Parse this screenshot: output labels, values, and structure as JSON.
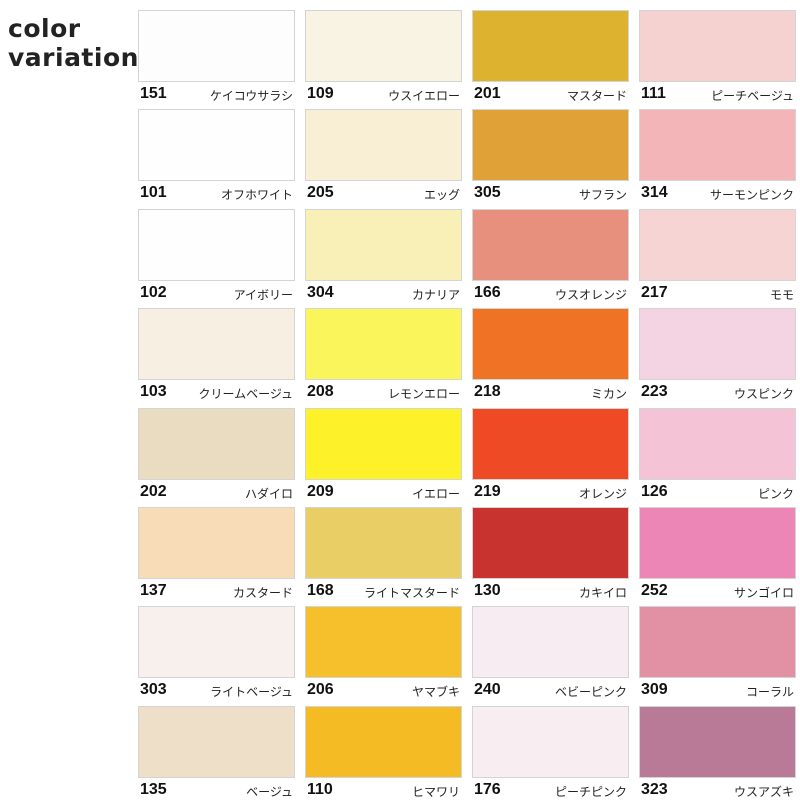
{
  "title": [
    "color",
    "variation"
  ],
  "rows": [
    [
      {
        "code": "151",
        "name": "ケイコウサラシ",
        "color": "#fdfdfd"
      },
      {
        "code": "109",
        "name": "ウスイエロー",
        "color": "#f8f3e3"
      },
      {
        "code": "201",
        "name": "マスタード",
        "color": "#dcb22e"
      },
      {
        "code": "111",
        "name": "ピーチベージュ",
        "color": "#f5d2cf"
      }
    ],
    [
      {
        "code": "101",
        "name": "オフホワイト",
        "color": "#fefefe"
      },
      {
        "code": "205",
        "name": "エッグ",
        "color": "#f8efd5"
      },
      {
        "code": "305",
        "name": "サフラン",
        "color": "#e0a136"
      },
      {
        "code": "314",
        "name": "サーモンピンク",
        "color": "#f3b5b8"
      }
    ],
    [
      {
        "code": "102",
        "name": "アイボリー",
        "color": "#fefefe"
      },
      {
        "code": "304",
        "name": "カナリア",
        "color": "#f9f0b8"
      },
      {
        "code": "166",
        "name": "ウスオレンジ",
        "color": "#e8907e"
      },
      {
        "code": "217",
        "name": "モモ",
        "color": "#f6d4d3"
      }
    ],
    [
      {
        "code": "103",
        "name": "クリームベージュ",
        "color": "#f8efe3"
      },
      {
        "code": "208",
        "name": "レモンエロー",
        "color": "#fbf55c"
      },
      {
        "code": "218",
        "name": "ミカン",
        "color": "#f07225"
      },
      {
        "code": "223",
        "name": "ウスピンク",
        "color": "#f4d4e3"
      }
    ],
    [
      {
        "code": "202",
        "name": "ハダイロ",
        "color": "#eadcc0"
      },
      {
        "code": "209",
        "name": "イエロー",
        "color": "#fdf22a"
      },
      {
        "code": "219",
        "name": "オレンジ",
        "color": "#ef4a26"
      },
      {
        "code": "126",
        "name": "ピンク",
        "color": "#f4c3d6"
      }
    ],
    [
      {
        "code": "137",
        "name": "カスタード",
        "color": "#f7dcb7"
      },
      {
        "code": "168",
        "name": "ライトマスタード",
        "color": "#e8ce65"
      },
      {
        "code": "130",
        "name": "カキイロ",
        "color": "#c8332f"
      },
      {
        "code": "252",
        "name": "サンゴイロ",
        "color": "#ec86b6"
      }
    ],
    [
      {
        "code": "303",
        "name": "ライトベージュ",
        "color": "#f8f0ec"
      },
      {
        "code": "206",
        "name": "ヤマブキ",
        "color": "#f5c02b"
      },
      {
        "code": "240",
        "name": "ベビーピンク",
        "color": "#f6ecf1"
      },
      {
        "code": "309",
        "name": "コーラル",
        "color": "#e291a4"
      }
    ],
    [
      {
        "code": "135",
        "name": "ベージュ",
        "color": "#eedfc8"
      },
      {
        "code": "110",
        "name": "ヒマワリ",
        "color": "#f4bb25"
      },
      {
        "code": "176",
        "name": "ピーチピンク",
        "color": "#f8eef1"
      },
      {
        "code": "323",
        "name": "ウスアズキ",
        "color": "#b97a98"
      }
    ]
  ]
}
